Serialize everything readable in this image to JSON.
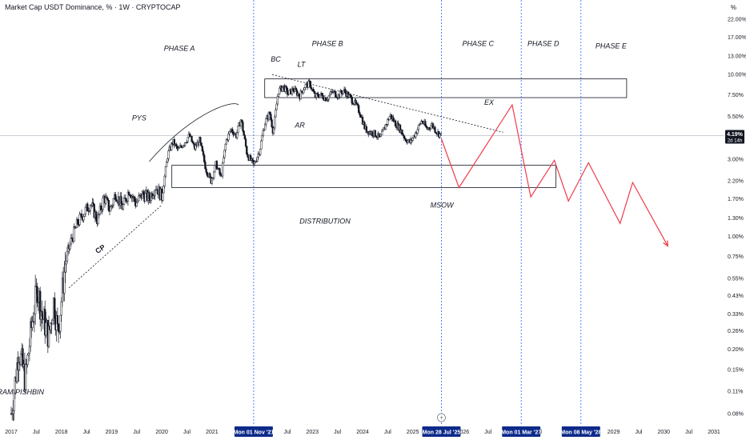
{
  "header": {
    "title": "Market Cap USDT Dominance, % · 1W · CRYPTOCAP",
    "axis_unit": "%"
  },
  "colors": {
    "candle": "#131722",
    "projection": "#ef3b4c",
    "vline": "#2962ff",
    "label_bg": "#0d2a8a",
    "grid_text": "#131722"
  },
  "chart_data": {
    "type": "candlestick",
    "title": "Market Cap USDT Dominance, % · 1W · CRYPTOCAP",
    "y_scale": "log",
    "ylim": [
      0.075,
      25
    ],
    "y_ticks": [
      "22.00%",
      "17.00%",
      "13.00%",
      "10.00%",
      "7.50%",
      "5.50%",
      "3.00%",
      "2.20%",
      "1.70%",
      "1.30%",
      "1.00%",
      "0.75%",
      "0.55%",
      "0.43%",
      "0.33%",
      "0.26%",
      "0.20%",
      "0.15%",
      "0.11%",
      "0.08%"
    ],
    "x_ticks": [
      "2017",
      "Jul",
      "2018",
      "Jul",
      "2019",
      "Jul",
      "2020",
      "Jul",
      "2021",
      "Jul",
      "2023",
      "Jul",
      "2024",
      "Jul",
      "2025",
      "2026",
      "Jul",
      "Jul",
      "2029",
      "Jul",
      "2030",
      "Jul",
      "2031"
    ],
    "x_tick_dates": [
      2017.0,
      2017.5,
      2018.0,
      2018.5,
      2019.0,
      2019.5,
      2020.0,
      2020.5,
      2021.0,
      2022.5,
      2023.0,
      2023.5,
      2024.0,
      2024.5,
      2025.0,
      2026.0,
      2026.5,
      2027.5,
      2029.0,
      2029.5,
      2030.0,
      2030.5,
      2031.0
    ],
    "current_price": {
      "label": "4.19%",
      "sub": "2d 14h",
      "value": 4.19
    },
    "vertical_markers": [
      {
        "date": 2021.83,
        "label": "Mon 01 Nov '21"
      },
      {
        "date": 2025.57,
        "label": "Mon 28 Jul '25"
      },
      {
        "date": 2027.16,
        "label": "Mon 01 Mar '27"
      },
      {
        "date": 2028.35,
        "label": "Mon 08 May '28"
      }
    ],
    "annotations": [
      {
        "text": "PHASE A",
        "date": 2020.35,
        "value": 14.0
      },
      {
        "text": "PHASE B",
        "date": 2023.3,
        "value": 15.0
      },
      {
        "text": "PHASE C",
        "date": 2026.3,
        "value": 15.0
      },
      {
        "text": "PHASE D",
        "date": 2027.6,
        "value": 15.0
      },
      {
        "text": "PHASE E",
        "date": 2028.95,
        "value": 14.5
      },
      {
        "text": "BC",
        "date": 2022.27,
        "value": 12.0
      },
      {
        "text": "LT",
        "date": 2022.78,
        "value": 11.2
      },
      {
        "text": "PYS",
        "date": 2019.55,
        "value": 5.2
      },
      {
        "text": "AR",
        "date": 2022.75,
        "value": 4.7
      },
      {
        "text": "EX",
        "date": 2026.52,
        "value": 6.5
      },
      {
        "text": "MSOW",
        "date": 2025.58,
        "value": 1.5
      },
      {
        "text": "DISTRIBUTION",
        "date": 2023.25,
        "value": 1.2
      },
      {
        "text": "ARAM PISHBIN",
        "date": 2017.14,
        "value": 0.105
      },
      {
        "text": "CP",
        "date": 2018.8,
        "value": 0.81
      }
    ],
    "zones": [
      {
        "from_date": 2022.05,
        "to_date": 2029.26,
        "low": 7.2,
        "high": 9.4
      },
      {
        "from_date": 2020.2,
        "to_date": 2027.85,
        "low": 2.0,
        "high": 2.75
      }
    ],
    "trendlines": [
      {
        "style": "dashed",
        "points": [
          [
            2022.2,
            10.0
          ],
          [
            2026.8,
            4.4
          ]
        ]
      },
      {
        "style": "dashed",
        "points": [
          [
            2018.15,
            0.48
          ],
          [
            2020.0,
            1.56
          ]
        ]
      }
    ],
    "pys_arc": {
      "points": [
        [
          2019.75,
          2.9
        ],
        [
          2020.6,
          5.8
        ],
        [
          2021.4,
          7.0
        ],
        [
          2021.53,
          6.5
        ]
      ]
    },
    "projection": [
      [
        2025.57,
        4.0
      ],
      [
        2025.92,
        2.0
      ],
      [
        2026.98,
        6.5
      ],
      [
        2027.35,
        1.75
      ],
      [
        2027.82,
        2.95
      ],
      [
        2028.1,
        1.65
      ],
      [
        2028.5,
        2.85
      ],
      [
        2029.13,
        1.2
      ],
      [
        2029.38,
        2.15
      ],
      [
        2030.08,
        0.87
      ]
    ],
    "series": [
      {
        "name": "",
        "key_points": [
          [
            2017.0,
            0.08
          ],
          [
            2017.07,
            0.12
          ],
          [
            2017.15,
            0.2
          ],
          [
            2017.28,
            0.13
          ],
          [
            2017.42,
            0.3
          ],
          [
            2017.52,
            0.48
          ],
          [
            2017.62,
            0.32
          ],
          [
            2017.75,
            0.24
          ],
          [
            2017.85,
            0.4
          ],
          [
            2017.93,
            0.25
          ],
          [
            2018.08,
            0.7
          ],
          [
            2018.2,
            0.95
          ],
          [
            2018.32,
            1.2
          ],
          [
            2018.45,
            1.4
          ],
          [
            2018.58,
            1.6
          ],
          [
            2018.72,
            1.25
          ],
          [
            2018.85,
            1.75
          ],
          [
            2018.97,
            1.45
          ],
          [
            2019.08,
            1.85
          ],
          [
            2019.22,
            1.5
          ],
          [
            2019.35,
            1.95
          ],
          [
            2019.48,
            1.6
          ],
          [
            2019.62,
            1.82
          ],
          [
            2019.75,
            1.72
          ],
          [
            2019.88,
            2.05
          ],
          [
            2020.0,
            1.75
          ],
          [
            2020.12,
            3.2
          ],
          [
            2020.22,
            3.85
          ],
          [
            2020.32,
            3.4
          ],
          [
            2020.42,
            3.7
          ],
          [
            2020.55,
            4.2
          ],
          [
            2020.65,
            3.5
          ],
          [
            2020.75,
            3.9
          ],
          [
            2020.88,
            2.6
          ],
          [
            2020.98,
            2.2
          ],
          [
            2021.08,
            2.8
          ],
          [
            2021.18,
            2.3
          ],
          [
            2021.28,
            3.9
          ],
          [
            2021.38,
            4.6
          ],
          [
            2021.48,
            4.2
          ],
          [
            2021.58,
            5.3
          ],
          [
            2021.7,
            3.2
          ],
          [
            2021.83,
            2.75
          ],
          [
            2021.95,
            3.4
          ],
          [
            2022.05,
            5.0
          ],
          [
            2022.15,
            5.8
          ],
          [
            2022.22,
            4.4
          ],
          [
            2022.32,
            7.9
          ],
          [
            2022.42,
            8.4
          ],
          [
            2022.52,
            7.6
          ],
          [
            2022.62,
            8.1
          ],
          [
            2022.75,
            7.4
          ],
          [
            2022.85,
            8.5
          ],
          [
            2022.95,
            8.8
          ],
          [
            2023.05,
            7.3
          ],
          [
            2023.15,
            7.5
          ],
          [
            2023.28,
            7.1
          ],
          [
            2023.4,
            7.8
          ],
          [
            2023.52,
            7.4
          ],
          [
            2023.62,
            8.0
          ],
          [
            2023.72,
            7.4
          ],
          [
            2023.85,
            6.6
          ],
          [
            2023.95,
            5.8
          ],
          [
            2024.05,
            4.6
          ],
          [
            2024.15,
            4.4
          ],
          [
            2024.25,
            4.3
          ],
          [
            2024.35,
            4.0
          ],
          [
            2024.45,
            4.8
          ],
          [
            2024.55,
            5.6
          ],
          [
            2024.65,
            5.0
          ],
          [
            2024.75,
            4.6
          ],
          [
            2024.85,
            4.0
          ],
          [
            2024.95,
            3.8
          ],
          [
            2025.08,
            4.5
          ],
          [
            2025.18,
            5.2
          ],
          [
            2025.28,
            4.6
          ],
          [
            2025.38,
            4.9
          ],
          [
            2025.48,
            4.4
          ],
          [
            2025.57,
            4.19
          ]
        ]
      }
    ]
  }
}
